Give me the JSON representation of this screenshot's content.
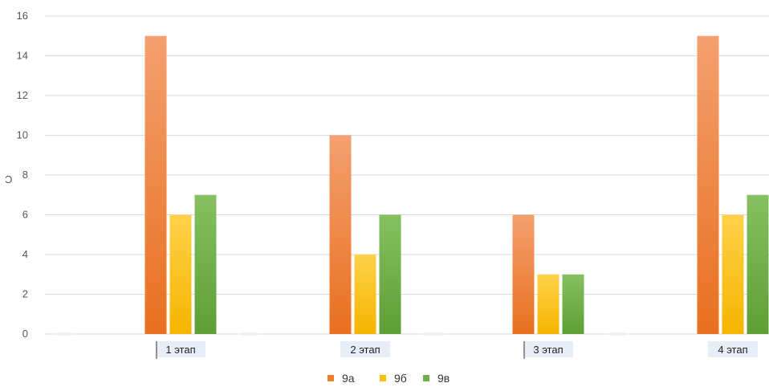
{
  "chart_data": {
    "type": "bar",
    "categories": [
      "1 этап",
      "2 этап",
      "3 этап",
      "4 этап"
    ],
    "series": [
      {
        "name": "9а",
        "values": [
          15,
          10,
          6,
          15
        ],
        "color": "#ED7D31"
      },
      {
        "name": "9б",
        "values": [
          6,
          4,
          3,
          6
        ],
        "color": "#FFC000"
      },
      {
        "name": "9в",
        "values": [
          7,
          6,
          3,
          7
        ],
        "color": "#70AD47"
      }
    ],
    "ylim": [
      0,
      16
    ],
    "yticks": [
      "0",
      "2",
      "4",
      "6",
      "8",
      "10",
      "12",
      "14",
      "16"
    ],
    "grid": true,
    "legend": "bottom",
    "edge_mark": "Ɔ"
  }
}
